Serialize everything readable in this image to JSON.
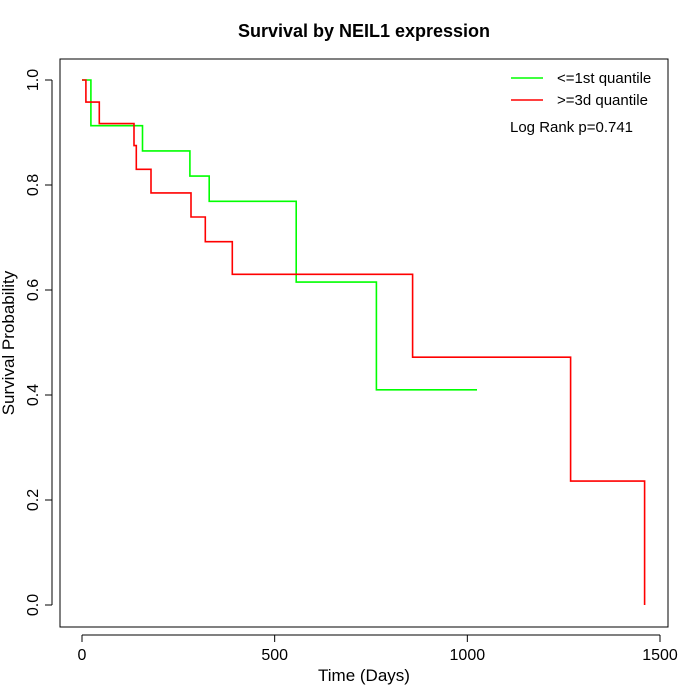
{
  "chart_data": {
    "type": "line",
    "title": "Survival by NEIL1 expression",
    "xlabel": "Time (Days)",
    "ylabel": "Survival Probability",
    "xlim": [
      0,
      1500
    ],
    "ylim": [
      0,
      1
    ],
    "x_ticks": [
      0,
      500,
      1000,
      1500
    ],
    "y_ticks": [
      0.0,
      0.2,
      0.4,
      0.6,
      0.8,
      1.0
    ],
    "x_tick_labels": [
      "0",
      "500",
      "1000",
      "1500"
    ],
    "y_tick_labels": [
      "0.0",
      "0.2",
      "0.4",
      "0.6",
      "0.8",
      "1.0"
    ],
    "grid": false,
    "legend_position": "top-right",
    "annotation": "Log Rank p=0.741",
    "series": [
      {
        "name": "<=1st quantile",
        "color": "#00ff00",
        "steps": [
          [
            0,
            1.0
          ],
          [
            23,
            0.913
          ],
          [
            157,
            0.865
          ],
          [
            280,
            0.817
          ],
          [
            330,
            0.769
          ],
          [
            556,
            0.615
          ],
          [
            764,
            0.41
          ],
          [
            1025,
            0.41
          ]
        ]
      },
      {
        "name": ">=3d quantile",
        "color": "#ff0000",
        "steps": [
          [
            0,
            1.0
          ],
          [
            10,
            0.958
          ],
          [
            45,
            0.917
          ],
          [
            135,
            0.875
          ],
          [
            141,
            0.83
          ],
          [
            179,
            0.785
          ],
          [
            283,
            0.739
          ],
          [
            320,
            0.692
          ],
          [
            390,
            0.63
          ],
          [
            858,
            0.472
          ],
          [
            1268,
            0.236
          ],
          [
            1460,
            0.0
          ]
        ]
      }
    ]
  }
}
